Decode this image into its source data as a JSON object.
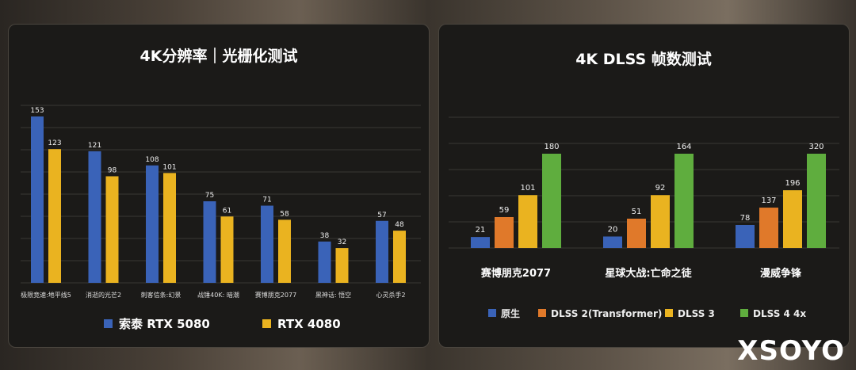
{
  "chart_data": [
    {
      "type": "bar",
      "title": "4K分辨率｜光栅化测试",
      "categories": [
        "极限竞速:地平线5",
        "消逝的光芒2",
        "刺客信条:幻景",
        "战锤40K: 暗潮",
        "赛博朋克2077",
        "黑神话: 悟空",
        "心灵杀手2"
      ],
      "series": [
        {
          "name": "索泰 RTX 5080",
          "color": "#3a63b8",
          "values": [
            153,
            121,
            108,
            75,
            71,
            38,
            57
          ]
        },
        {
          "name": "RTX 4080",
          "color": "#eab320",
          "values": [
            123,
            98,
            101,
            61,
            58,
            32,
            48
          ]
        }
      ],
      "ylim": [
        0,
        170
      ],
      "legend": "bottom",
      "grid": true
    },
    {
      "type": "bar",
      "title": "4K DLSS 帧数测试",
      "categories": [
        "赛博朋克2077",
        "星球大战:亡命之徒",
        "漫威争锋"
      ],
      "series": [
        {
          "name": "原生",
          "color": "#3a63b8",
          "values": [
            21,
            20,
            78
          ]
        },
        {
          "name": "DLSS 2(Transformer)",
          "color": "#e0792a",
          "values": [
            59,
            51,
            137
          ]
        },
        {
          "name": "DLSS 3",
          "color": "#eab320",
          "values": [
            101,
            92,
            196
          ]
        },
        {
          "name": "DLSS 4 4x",
          "color": "#5fad3e",
          "values": [
            180,
            164,
            320
          ]
        }
      ],
      "legend": "bottom",
      "grid": true,
      "note_scale": "per-group"
    }
  ],
  "watermark": "XSOYO"
}
